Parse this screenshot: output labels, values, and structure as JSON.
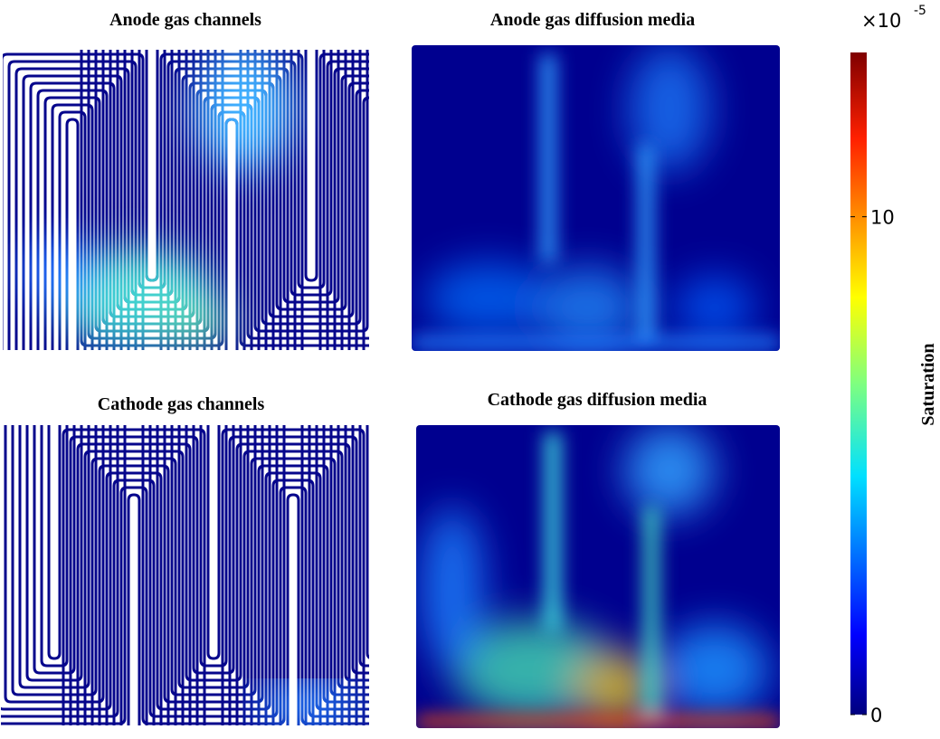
{
  "panels": [
    {
      "title": "Anode gas channels"
    },
    {
      "title": "Anode gas diffusion media"
    },
    {
      "title": "Cathode gas channels"
    },
    {
      "title": "Cathode gas diffusion media"
    }
  ],
  "colorbar": {
    "label": "Saturation",
    "scale_base": "×10",
    "scale_exponent": "-5",
    "lim": [
      0,
      13.3
    ],
    "ticks": [
      0,
      10
    ]
  }
}
